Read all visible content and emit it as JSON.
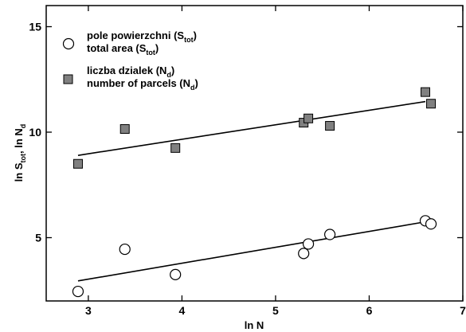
{
  "chart_data": {
    "type": "scatter",
    "xlabel": "ln N",
    "ylabel": {
      "main": "ln S",
      "sub1": "tot",
      "sep": ",  ln N",
      "sub2": "d"
    },
    "xlim": [
      2.55,
      7.0
    ],
    "ylim": [
      2.0,
      16.0
    ],
    "xticks": [
      3,
      4,
      5,
      6,
      7
    ],
    "yticks": [
      5,
      10,
      15
    ],
    "grid": false,
    "legend_position": "top-left",
    "series": [
      {
        "name": "pole powierzchni (S_tot) total area (S_tot)",
        "legend": {
          "line1": "pole powierzchni (S",
          "line1_sub": "tot",
          "line1_end": ")",
          "line2": "total area (S",
          "line2_sub": "tot",
          "line2_end": ")"
        },
        "marker": "open-circle",
        "points": [
          {
            "x": 2.89,
            "y": 2.45
          },
          {
            "x": 3.39,
            "y": 4.45
          },
          {
            "x": 3.93,
            "y": 3.25
          },
          {
            "x": 5.3,
            "y": 4.25
          },
          {
            "x": 5.35,
            "y": 4.7
          },
          {
            "x": 5.58,
            "y": 5.15
          },
          {
            "x": 6.6,
            "y": 5.8
          },
          {
            "x": 6.66,
            "y": 5.65
          }
        ],
        "fit": {
          "x": [
            2.89,
            6.6
          ],
          "y": [
            2.95,
            5.75
          ]
        }
      },
      {
        "name": "liczba dzialek (N_d) number of parcels (N_d)",
        "legend": {
          "line1": "liczba dzialek (N",
          "line1_sub": "d",
          "line1_end": ")",
          "line2": "number of parcels (N",
          "line2_sub": "d",
          "line2_end": ")"
        },
        "marker": "filled-square",
        "color": "#808080",
        "points": [
          {
            "x": 2.89,
            "y": 8.5
          },
          {
            "x": 3.39,
            "y": 10.15
          },
          {
            "x": 3.93,
            "y": 9.25
          },
          {
            "x": 5.3,
            "y": 10.45
          },
          {
            "x": 5.35,
            "y": 10.65
          },
          {
            "x": 5.58,
            "y": 10.3
          },
          {
            "x": 6.6,
            "y": 11.9
          },
          {
            "x": 6.66,
            "y": 11.35
          }
        ],
        "fit": {
          "x": [
            2.89,
            6.6
          ],
          "y": [
            8.9,
            11.45
          ]
        }
      }
    ]
  }
}
